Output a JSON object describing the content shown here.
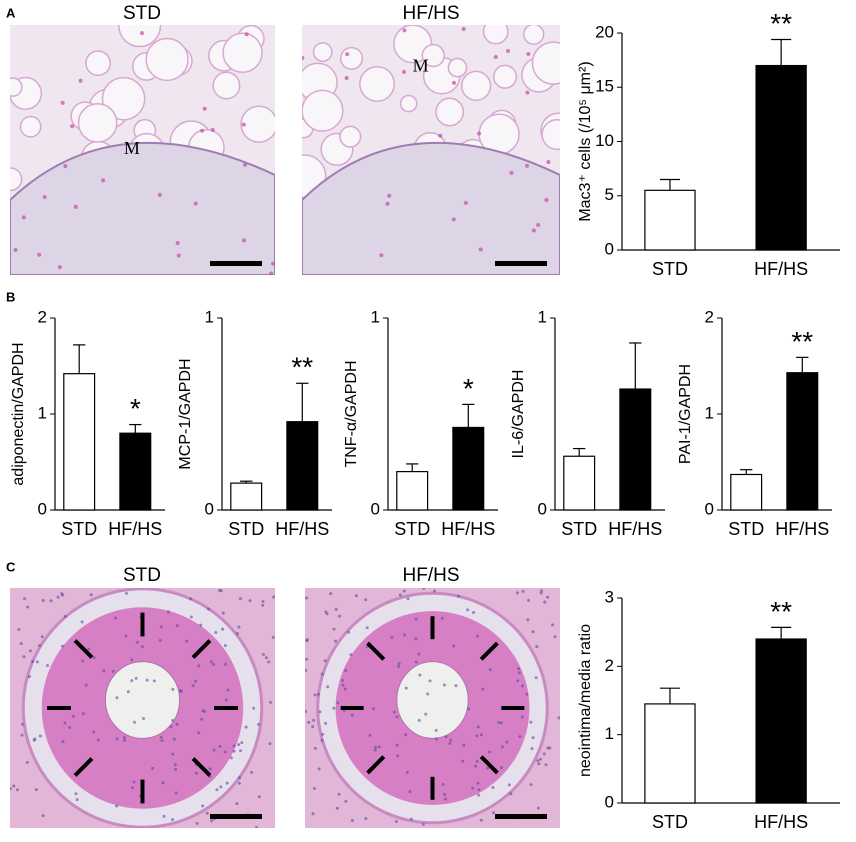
{
  "panels": [
    {
      "label": "A",
      "images": [
        {
          "title": "STD",
          "marker": "M"
        },
        {
          "title": "HF/HS",
          "marker": "M"
        }
      ]
    },
    {
      "label": "B"
    },
    {
      "label": "C",
      "images": [
        {
          "title": "STD"
        },
        {
          "title": "HF/HS"
        }
      ]
    }
  ],
  "chart_data": [
    {
      "type": "bar",
      "y_label": "Mac3⁺ cells (/10⁵ μm²)",
      "categories": [
        "STD",
        "HF/HS"
      ],
      "values": [
        5.5,
        17
      ],
      "errors": [
        1.0,
        2.4
      ],
      "colors": [
        "#ffffff",
        "#000000"
      ],
      "annotations": [
        null,
        "**"
      ],
      "ylim": [
        0,
        20
      ],
      "yticks": [
        0,
        5,
        10,
        15,
        20
      ]
    },
    {
      "type": "bar",
      "y_label": "adiponectin/GAPDH",
      "categories": [
        "STD",
        "HF/HS"
      ],
      "values": [
        1.42,
        0.8
      ],
      "errors": [
        0.3,
        0.09
      ],
      "colors": [
        "#ffffff",
        "#000000"
      ],
      "annotations": [
        null,
        "*"
      ],
      "ylim": [
        0,
        2
      ],
      "yticks": [
        0,
        1,
        2
      ]
    },
    {
      "type": "bar",
      "y_label": "MCP-1/GAPDH",
      "categories": [
        "STD",
        "HF/HS"
      ],
      "values": [
        0.14,
        0.46
      ],
      "errors": [
        0.01,
        0.2
      ],
      "colors": [
        "#ffffff",
        "#000000"
      ],
      "annotations": [
        null,
        "**"
      ],
      "ylim": [
        0,
        1
      ],
      "yticks": [
        0,
        1
      ]
    },
    {
      "type": "bar",
      "y_label": "TNF-α/GAPDH",
      "categories": [
        "STD",
        "HF/HS"
      ],
      "values": [
        0.2,
        0.43
      ],
      "errors": [
        0.04,
        0.12
      ],
      "colors": [
        "#ffffff",
        "#000000"
      ],
      "annotations": [
        null,
        "*"
      ],
      "ylim": [
        0,
        1
      ],
      "yticks": [
        0,
        1
      ]
    },
    {
      "type": "bar",
      "y_label": "IL-6/GAPDH",
      "categories": [
        "STD",
        "HF/HS"
      ],
      "values": [
        0.28,
        0.63
      ],
      "errors": [
        0.04,
        0.24
      ],
      "colors": [
        "#ffffff",
        "#000000"
      ],
      "ylim": [
        0,
        1
      ],
      "yticks": [
        0,
        1
      ]
    },
    {
      "type": "bar",
      "y_label": "PAI-1/GAPDH",
      "categories": [
        "STD",
        "HF/HS"
      ],
      "values": [
        0.37,
        1.43
      ],
      "errors": [
        0.05,
        0.16
      ],
      "colors": [
        "#ffffff",
        "#000000"
      ],
      "annotations": [
        null,
        "**"
      ],
      "ylim": [
        0,
        2
      ],
      "yticks": [
        0,
        1,
        2
      ]
    },
    {
      "type": "bar",
      "y_label": "neointima/media ratio",
      "categories": [
        "STD",
        "HF/HS"
      ],
      "values": [
        1.45,
        2.4
      ],
      "errors": [
        0.23,
        0.17
      ],
      "colors": [
        "#ffffff",
        "#000000"
      ],
      "annotations": [
        null,
        "**"
      ],
      "ylim": [
        0,
        3
      ],
      "yticks": [
        0,
        1,
        2,
        3
      ]
    }
  ]
}
